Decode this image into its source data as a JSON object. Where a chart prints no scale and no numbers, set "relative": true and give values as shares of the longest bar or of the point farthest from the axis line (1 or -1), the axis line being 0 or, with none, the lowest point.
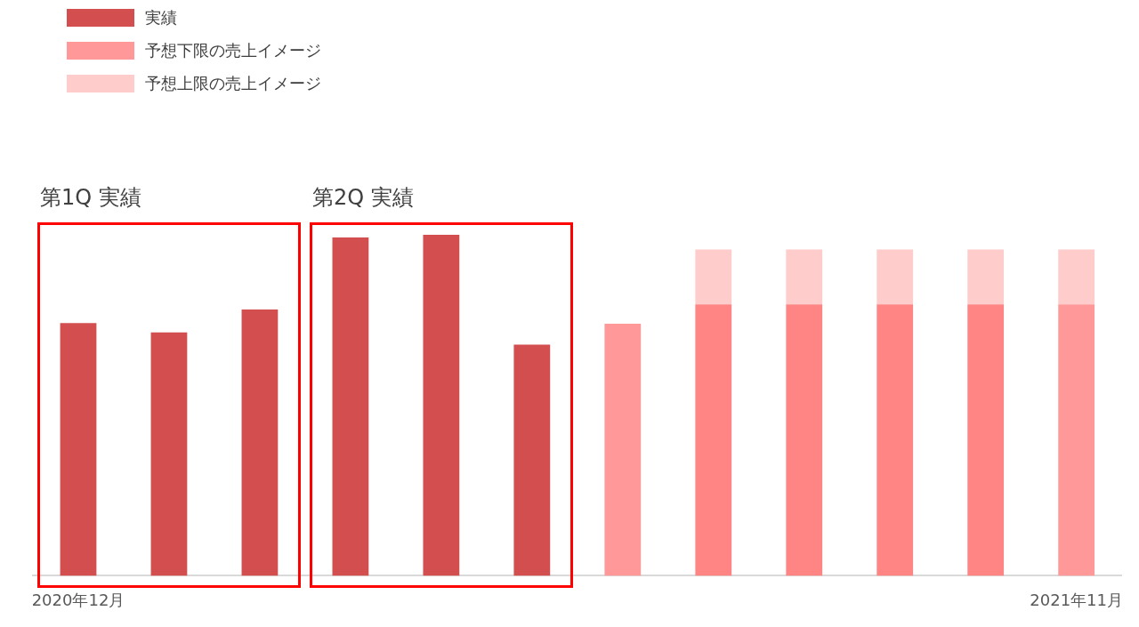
{
  "chart_data": {
    "type": "bar",
    "relative": true,
    "stacked": true,
    "legend": "top left",
    "grid": false,
    "categories": [
      "2020年12月",
      null,
      null,
      null,
      null,
      null,
      null,
      null,
      null,
      null,
      null,
      "2021年11月"
    ],
    "series": [
      {
        "name": "実績",
        "color": "#d34f4f",
        "values": [
          0.741,
          0.714,
          0.781,
          0.992,
          1,
          0.678,
          null,
          null,
          null,
          null,
          null,
          null
        ]
      },
      {
        "name": "予想下限の売上イメージ",
        "color": "#ff9999",
        "colors": [
          null,
          null,
          null,
          null,
          null,
          null,
          "#ff9999",
          "#ff8585",
          "#ff8585",
          "#ff8585",
          "#ff8585",
          "#ff9999"
        ],
        "values": [
          null,
          null,
          null,
          null,
          null,
          null,
          0.739,
          0.796,
          0.796,
          0.796,
          0.796,
          0.796
        ]
      },
      {
        "name": "予想上限の売上イメージ",
        "color": "#ffcccc",
        "values": [
          null,
          null,
          null,
          null,
          null,
          null,
          null,
          0.161,
          0.161,
          0.161,
          0.161,
          0.161
        ]
      }
    ],
    "annotations": [
      "第1Q 実績",
      "第2Q 実績"
    ]
  }
}
